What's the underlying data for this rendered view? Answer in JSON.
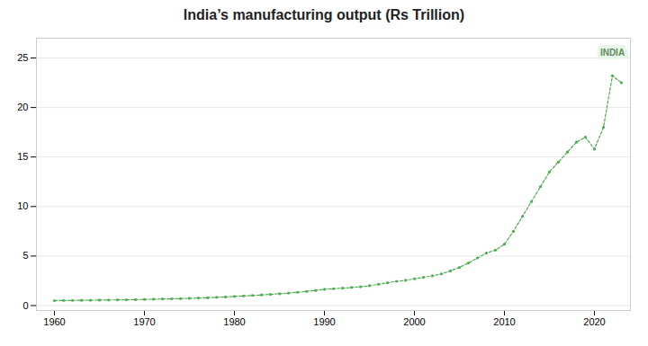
{
  "chart_data": {
    "type": "line",
    "title": "India’s manufacturing output (Rs Trillion)",
    "x": [
      1960,
      1961,
      1962,
      1963,
      1964,
      1965,
      1966,
      1967,
      1968,
      1969,
      1970,
      1971,
      1972,
      1973,
      1974,
      1975,
      1976,
      1977,
      1978,
      1979,
      1980,
      1981,
      1982,
      1983,
      1984,
      1985,
      1986,
      1987,
      1988,
      1989,
      1990,
      1991,
      1992,
      1993,
      1994,
      1995,
      1996,
      1997,
      1998,
      1999,
      2000,
      2001,
      2002,
      2003,
      2004,
      2005,
      2006,
      2007,
      2008,
      2009,
      2010,
      2011,
      2012,
      2013,
      2014,
      2015,
      2016,
      2017,
      2018,
      2019,
      2020,
      2021,
      2022,
      2023
    ],
    "values": [
      0.5,
      0.51,
      0.52,
      0.53,
      0.54,
      0.55,
      0.56,
      0.57,
      0.58,
      0.6,
      0.62,
      0.64,
      0.66,
      0.68,
      0.7,
      0.73,
      0.76,
      0.79,
      0.83,
      0.87,
      0.92,
      0.97,
      1.02,
      1.07,
      1.13,
      1.19,
      1.26,
      1.34,
      1.43,
      1.53,
      1.64,
      1.7,
      1.76,
      1.82,
      1.9,
      2.0,
      2.15,
      2.3,
      2.45,
      2.55,
      2.7,
      2.85,
      3.0,
      3.2,
      3.5,
      3.85,
      4.3,
      4.8,
      5.3,
      5.6,
      6.2,
      7.5,
      9.0,
      10.5,
      12.0,
      13.5,
      14.5,
      15.5,
      16.5,
      17.0,
      15.8,
      18.0,
      23.2,
      22.5
    ],
    "color": "#4caf50",
    "line_style": "dashed",
    "marker": "o",
    "xlim": [
      1958,
      2024
    ],
    "ylim": [
      -0.5,
      27
    ],
    "xticks": [
      1960,
      1970,
      1980,
      1990,
      2000,
      2010,
      2020
    ],
    "yticks": [
      0,
      5,
      10,
      15,
      20,
      25
    ],
    "grid": true,
    "annotations": [
      {
        "text": "INDIA",
        "x": 2022.0,
        "y": 25.5
      }
    ]
  }
}
